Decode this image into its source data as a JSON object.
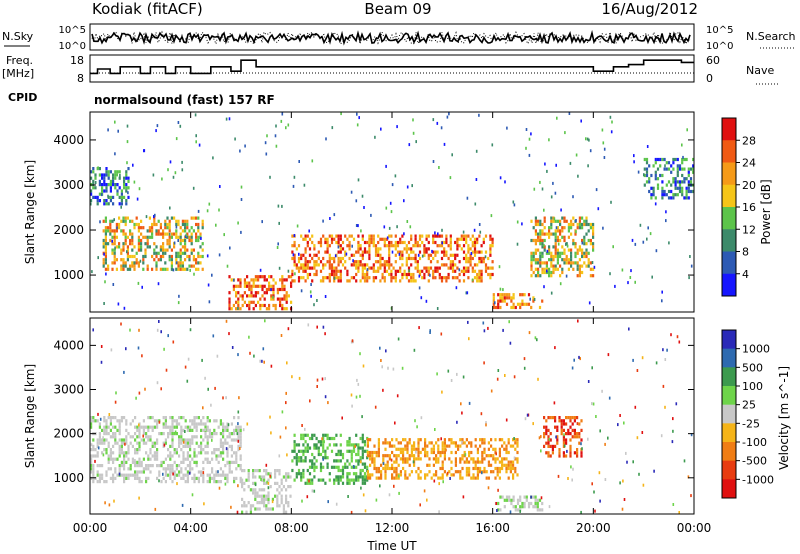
{
  "header": {
    "station": "Kodiak (fitACF)",
    "beam": "Beam 09",
    "date": "16/Aug/2012"
  },
  "status_panels": {
    "nsky_label": "N.Sky",
    "freq_label_1": "Freq.",
    "freq_label_2": "[MHz]",
    "cpid_label": "CPID",
    "nsearch_label": "N.Search",
    "nave_label": "Nave",
    "noise_tick_top": "10^5",
    "noise_tick_bottom": "10^0",
    "freq_tick_top": "18",
    "freq_tick_bottom": "8",
    "nave_tick_top": "60",
    "nave_tick_bottom": "0",
    "cpid_text": "normalsound (fast) 157 RF"
  },
  "x_ticks": [
    "00:00",
    "04:00",
    "08:00",
    "12:00",
    "16:00",
    "20:00",
    "00:00"
  ],
  "x_label": "Time UT",
  "chart_data": [
    {
      "type": "heatmap",
      "ylabel": "Slant Range [km]",
      "xlabel": "",
      "ylim": [
        180,
        4620
      ],
      "y_ticks": [
        "1000",
        "2000",
        "3000",
        "4000"
      ],
      "colorbar_label": "Power [dB]",
      "colorbar_ticks": [
        "4",
        "8",
        "12",
        "16",
        "20",
        "24",
        "28"
      ],
      "colorbar_colors": [
        "#1616ff",
        "#2d5ab4",
        "#3c8a6a",
        "#5cc44a",
        "#f5c518",
        "#f59a18",
        "#f05a14",
        "#e01010"
      ],
      "regions": [
        {
          "t0": 0.0,
          "t1": 1.5,
          "r0": 2600,
          "r1": 3400,
          "level": "low"
        },
        {
          "t0": 0.5,
          "t1": 4.5,
          "r0": 1100,
          "r1": 2300,
          "level": "mid"
        },
        {
          "t0": 5.5,
          "t1": 8.0,
          "r0": 250,
          "r1": 1000,
          "level": "high"
        },
        {
          "t0": 8.0,
          "t1": 16.0,
          "r0": 900,
          "r1": 1900,
          "level": "high"
        },
        {
          "t0": 16.0,
          "t1": 18.0,
          "r0": 250,
          "r1": 600,
          "level": "high"
        },
        {
          "t0": 17.5,
          "t1": 20.0,
          "r0": 1000,
          "r1": 2300,
          "level": "mid"
        },
        {
          "t0": 22.0,
          "t1": 24.0,
          "r0": 2700,
          "r1": 3600,
          "level": "low"
        }
      ]
    },
    {
      "type": "heatmap",
      "ylabel": "Slant Range [km]",
      "xlabel": "Time UT",
      "ylim": [
        180,
        4620
      ],
      "y_ticks": [
        "1000",
        "2000",
        "3000",
        "4000"
      ],
      "colorbar_label": "Velocity [m s^-1]",
      "colorbar_ticks": [
        "1000",
        "500",
        "100",
        "25",
        "-25",
        "-100",
        "-500",
        "-1000"
      ],
      "colorbar_colors": [
        "#2a2ab8",
        "#2e6ab0",
        "#3c9a4e",
        "#6ed44a",
        "#c8c8c8",
        "#f5b418",
        "#f07d14",
        "#e83c10",
        "#e01010"
      ],
      "regions": [
        {
          "t0": 0.0,
          "t1": 6.0,
          "r0": 900,
          "r1": 2400,
          "level": "ground"
        },
        {
          "t0": 6.0,
          "t1": 8.0,
          "r0": 250,
          "r1": 1200,
          "level": "ground"
        },
        {
          "t0": 8.0,
          "t1": 11.0,
          "r0": 900,
          "r1": 2000,
          "level": "positive"
        },
        {
          "t0": 11.0,
          "t1": 17.0,
          "r0": 1000,
          "r1": 1900,
          "level": "negative"
        },
        {
          "t0": 18.0,
          "t1": 19.5,
          "r0": 1500,
          "r1": 2400,
          "level": "strong-negative"
        },
        {
          "t0": 16.0,
          "t1": 18.0,
          "r0": 250,
          "r1": 600,
          "level": "ground"
        }
      ]
    }
  ]
}
